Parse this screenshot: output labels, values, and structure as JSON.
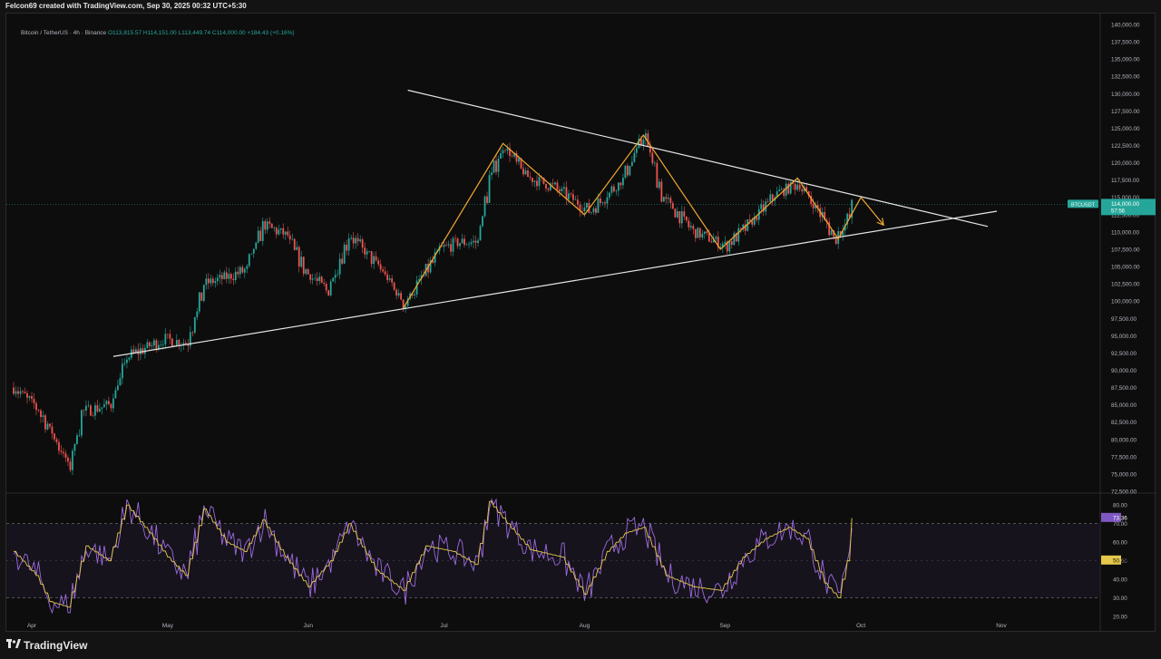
{
  "header": {
    "title": "Felcon69 created with TradingView.com, Sep 30, 2025 00:32 UTC+5:30"
  },
  "legend": {
    "symbol": "Bitcoin / TetherUS · 4h · Binance",
    "ohlc": "O113,815.57 H114,151.00 L113,449.74 C114,000.00 +184.43 (+0.16%)"
  },
  "footer": {
    "brand": "TradingView"
  },
  "colors": {
    "bull": "#26a69a",
    "bear": "#ef5350",
    "pattern": "#f0a830",
    "trendline": "#e6e6e6",
    "rsi": "#9c6ade",
    "rsi_ma": "#e6c84a",
    "price_tag": "#26a69a"
  },
  "chart_data": [
    {
      "type": "candlestick",
      "symbol_tag": "BTCUSDT",
      "last_price": "114,000.00",
      "countdown": "57:56",
      "ylim": [
        72500,
        140000
      ],
      "y_ticks": [
        "140,000.00",
        "137,500.00",
        "135,000.00",
        "132,500.00",
        "130,000.00",
        "127,500.00",
        "125,000.00",
        "122,500.00",
        "120,000.00",
        "117,500.00",
        "115,000.00",
        "112,500.00",
        "110,000.00",
        "107,500.00",
        "105,000.00",
        "102,500.00",
        "100,000.00",
        "97,500.00",
        "95,000.00",
        "92,500.00",
        "90,000.00",
        "87,500.00",
        "85,000.00",
        "82,500.00",
        "80,000.00",
        "77,500.00",
        "75,000.00",
        "72,500.00"
      ],
      "x_labels": [
        "Apr",
        "May",
        "Jun",
        "Jul",
        "Aug",
        "Sep",
        "Oct",
        "Nov"
      ],
      "x_label_dates": [
        "2025-04-01",
        "2025-05-01",
        "2025-06-01",
        "2025-07-01",
        "2025-08-01",
        "2025-09-01",
        "2025-10-01",
        "2025-11-01"
      ],
      "price_path": [
        [
          "2025-03-28",
          87500
        ],
        [
          "2025-04-02",
          84500
        ],
        [
          "2025-04-06",
          80000
        ],
        [
          "2025-04-09",
          76000
        ],
        [
          "2025-04-12",
          84000
        ],
        [
          "2025-04-18",
          85000
        ],
        [
          "2025-04-22",
          92000
        ],
        [
          "2025-04-30",
          94500
        ],
        [
          "2025-05-05",
          94000
        ],
        [
          "2025-05-09",
          102500
        ],
        [
          "2025-05-14",
          103500
        ],
        [
          "2025-05-18",
          104500
        ],
        [
          "2025-05-22",
          111000
        ],
        [
          "2025-05-27",
          109500
        ],
        [
          "2025-05-31",
          104500
        ],
        [
          "2025-06-05",
          101500
        ],
        [
          "2025-06-10",
          109500
        ],
        [
          "2025-06-17",
          104500
        ],
        [
          "2025-06-22",
          99500
        ],
        [
          "2025-06-30",
          107500
        ],
        [
          "2025-07-04",
          108500
        ],
        [
          "2025-07-08",
          108500
        ],
        [
          "2025-07-11",
          118000
        ],
        [
          "2025-07-14",
          122500
        ],
        [
          "2025-07-19",
          118000
        ],
        [
          "2025-07-25",
          116500
        ],
        [
          "2025-08-02",
          113000
        ],
        [
          "2025-08-09",
          117500
        ],
        [
          "2025-08-14",
          124000
        ],
        [
          "2025-08-18",
          115000
        ],
        [
          "2025-08-25",
          110000
        ],
        [
          "2025-09-01",
          108000
        ],
        [
          "2025-09-06",
          111000
        ],
        [
          "2025-09-12",
          115500
        ],
        [
          "2025-09-17",
          117000
        ],
        [
          "2025-09-22",
          112500
        ],
        [
          "2025-09-25",
          109000
        ],
        [
          "2025-09-28",
          112000
        ],
        [
          "2025-09-29",
          114000
        ]
      ],
      "trendlines": [
        {
          "from": [
            "2025-04-19",
            92000
          ],
          "to": [
            "2025-10-31",
            113000
          ]
        },
        {
          "from": [
            "2025-06-23",
            130500
          ],
          "to": [
            "2025-10-29",
            110800
          ]
        }
      ],
      "pattern_path": [
        [
          "2025-06-22",
          99000
        ],
        [
          "2025-07-14",
          122800
        ],
        [
          "2025-08-01",
          112500
        ],
        [
          "2025-08-14",
          124000
        ],
        [
          "2025-08-31",
          107500
        ],
        [
          "2025-09-17",
          117800
        ],
        [
          "2025-09-26",
          109000
        ],
        [
          "2025-10-01",
          115000
        ],
        [
          "2025-10-06",
          111000
        ]
      ]
    },
    {
      "type": "line",
      "name": "RSI",
      "ylim": [
        20,
        85
      ],
      "y_ticks": [
        "80.00",
        "70.00",
        "60.00",
        "50.00",
        "40.00",
        "30.00",
        "20.00"
      ],
      "bands": [
        70,
        30
      ],
      "rsi_value": "73.36",
      "ma_value": "50.39",
      "rsi_path": [
        [
          "2025-03-28",
          55
        ],
        [
          "2025-04-02",
          42
        ],
        [
          "2025-04-05",
          28
        ],
        [
          "2025-04-09",
          25
        ],
        [
          "2025-04-13",
          58
        ],
        [
          "2025-04-18",
          50
        ],
        [
          "2025-04-22",
          80
        ],
        [
          "2025-04-27",
          65
        ],
        [
          "2025-05-01",
          52
        ],
        [
          "2025-05-05",
          42
        ],
        [
          "2025-05-09",
          78
        ],
        [
          "2025-05-14",
          60
        ],
        [
          "2025-05-18",
          55
        ],
        [
          "2025-05-22",
          72
        ],
        [
          "2025-05-27",
          52
        ],
        [
          "2025-06-01",
          36
        ],
        [
          "2025-06-06",
          50
        ],
        [
          "2025-06-10",
          70
        ],
        [
          "2025-06-16",
          45
        ],
        [
          "2025-06-22",
          34
        ],
        [
          "2025-06-27",
          58
        ],
        [
          "2025-07-03",
          55
        ],
        [
          "2025-07-08",
          48
        ],
        [
          "2025-07-11",
          82
        ],
        [
          "2025-07-15",
          70
        ],
        [
          "2025-07-20",
          56
        ],
        [
          "2025-07-27",
          52
        ],
        [
          "2025-08-01",
          32
        ],
        [
          "2025-08-06",
          55
        ],
        [
          "2025-08-10",
          65
        ],
        [
          "2025-08-14",
          68
        ],
        [
          "2025-08-19",
          42
        ],
        [
          "2025-08-25",
          36
        ],
        [
          "2025-08-31",
          34
        ],
        [
          "2025-09-05",
          52
        ],
        [
          "2025-09-10",
          62
        ],
        [
          "2025-09-15",
          68
        ],
        [
          "2025-09-19",
          62
        ],
        [
          "2025-09-23",
          38
        ],
        [
          "2025-09-26",
          30
        ],
        [
          "2025-09-28",
          50
        ],
        [
          "2025-09-29",
          73
        ]
      ]
    }
  ]
}
